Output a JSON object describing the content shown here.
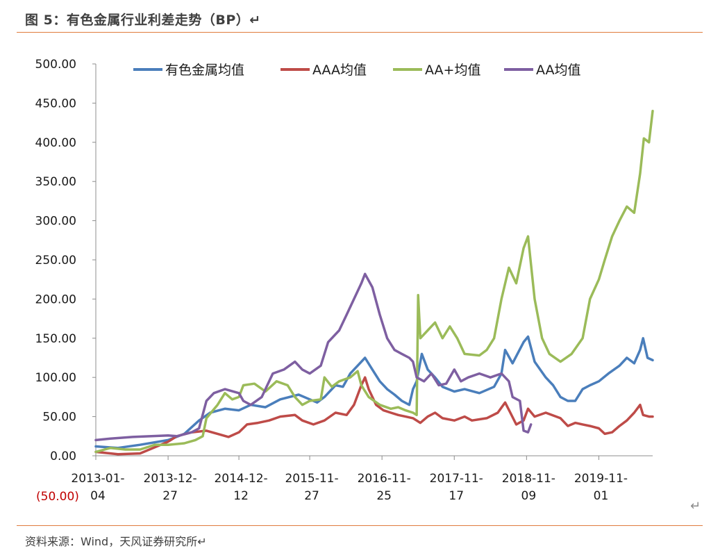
{
  "page": {
    "title": "图 5：有色金属行业利差走势（BP）↵",
    "source": "资料来源：Wind，天风证券研究所↵",
    "return_mark": "↵"
  },
  "chart_data": {
    "type": "line",
    "title": "",
    "xlabel": "",
    "ylabel": "",
    "ylim": [
      0,
      500
    ],
    "y_ticks": [
      "500.00",
      "450.00",
      "400.00",
      "350.00",
      "300.00",
      "250.00",
      "200.00",
      "150.00",
      "100.00",
      "50.00",
      "0.00"
    ],
    "y_below_label": "(50.00)",
    "y_below_label_color": "#c00000",
    "x_ticks": [
      {
        "line1": "2013-01-",
        "line2": "04",
        "t": 0.0
      },
      {
        "line1": "2013-12-",
        "line2": "27",
        "t": 0.98
      },
      {
        "line1": "2014-12-",
        "line2": "12",
        "t": 1.94
      },
      {
        "line1": "2015-11-",
        "line2": "27",
        "t": 2.9
      },
      {
        "line1": "2016-11-",
        "line2": "25",
        "t": 3.88
      },
      {
        "line1": "2017-11-",
        "line2": "17",
        "t": 4.86
      },
      {
        "line1": "2018-11-",
        "line2": "09",
        "t": 5.84
      },
      {
        "line1": "2019-11-",
        "line2": "01",
        "t": 6.82
      }
    ],
    "x_range": [
      0,
      7.55
    ],
    "legend_position": "top",
    "series": [
      {
        "name": "有色金属均值",
        "color": "#4a7ebb",
        "points": [
          [
            0,
            12
          ],
          [
            0.3,
            10
          ],
          [
            0.6,
            14
          ],
          [
            0.98,
            20
          ],
          [
            1.2,
            28
          ],
          [
            1.4,
            45
          ],
          [
            1.55,
            55
          ],
          [
            1.75,
            60
          ],
          [
            1.94,
            58
          ],
          [
            2.1,
            65
          ],
          [
            2.3,
            62
          ],
          [
            2.5,
            72
          ],
          [
            2.75,
            78
          ],
          [
            2.9,
            72
          ],
          [
            3.0,
            68
          ],
          [
            3.1,
            75
          ],
          [
            3.25,
            90
          ],
          [
            3.35,
            88
          ],
          [
            3.45,
            105
          ],
          [
            3.55,
            115
          ],
          [
            3.65,
            125
          ],
          [
            3.75,
            110
          ],
          [
            3.85,
            95
          ],
          [
            3.95,
            85
          ],
          [
            4.05,
            78
          ],
          [
            4.15,
            70
          ],
          [
            4.25,
            65
          ],
          [
            4.3,
            85
          ],
          [
            4.35,
            95
          ],
          [
            4.42,
            130
          ],
          [
            4.5,
            110
          ],
          [
            4.6,
            100
          ],
          [
            4.7,
            88
          ],
          [
            4.86,
            82
          ],
          [
            5.0,
            85
          ],
          [
            5.2,
            80
          ],
          [
            5.4,
            88
          ],
          [
            5.5,
            105
          ],
          [
            5.55,
            135
          ],
          [
            5.65,
            118
          ],
          [
            5.8,
            145
          ],
          [
            5.86,
            152
          ],
          [
            5.95,
            120
          ],
          [
            6.1,
            100
          ],
          [
            6.2,
            90
          ],
          [
            6.3,
            75
          ],
          [
            6.4,
            70
          ],
          [
            6.5,
            70
          ],
          [
            6.6,
            85
          ],
          [
            6.7,
            90
          ],
          [
            6.82,
            95
          ],
          [
            6.95,
            105
          ],
          [
            7.1,
            115
          ],
          [
            7.2,
            125
          ],
          [
            7.3,
            118
          ],
          [
            7.38,
            135
          ],
          [
            7.42,
            150
          ],
          [
            7.48,
            125
          ],
          [
            7.55,
            122
          ]
        ]
      },
      {
        "name": "AAA均值",
        "color": "#be4b48",
        "points": [
          [
            0,
            5
          ],
          [
            0.3,
            2
          ],
          [
            0.6,
            3
          ],
          [
            0.98,
            18
          ],
          [
            1.1,
            25
          ],
          [
            1.3,
            30
          ],
          [
            1.5,
            32
          ],
          [
            1.65,
            28
          ],
          [
            1.8,
            24
          ],
          [
            1.94,
            30
          ],
          [
            2.05,
            40
          ],
          [
            2.2,
            42
          ],
          [
            2.35,
            45
          ],
          [
            2.5,
            50
          ],
          [
            2.7,
            52
          ],
          [
            2.8,
            45
          ],
          [
            2.95,
            40
          ],
          [
            3.1,
            45
          ],
          [
            3.25,
            55
          ],
          [
            3.4,
            52
          ],
          [
            3.5,
            65
          ],
          [
            3.6,
            90
          ],
          [
            3.65,
            100
          ],
          [
            3.7,
            85
          ],
          [
            3.8,
            65
          ],
          [
            3.9,
            58
          ],
          [
            4.0,
            55
          ],
          [
            4.1,
            52
          ],
          [
            4.2,
            50
          ],
          [
            4.3,
            48
          ],
          [
            4.4,
            42
          ],
          [
            4.5,
            50
          ],
          [
            4.6,
            55
          ],
          [
            4.7,
            48
          ],
          [
            4.86,
            45
          ],
          [
            5.0,
            50
          ],
          [
            5.1,
            45
          ],
          [
            5.3,
            48
          ],
          [
            5.45,
            55
          ],
          [
            5.55,
            68
          ],
          [
            5.62,
            55
          ],
          [
            5.7,
            40
          ],
          [
            5.8,
            45
          ],
          [
            5.86,
            60
          ],
          [
            5.95,
            50
          ],
          [
            6.1,
            55
          ],
          [
            6.3,
            48
          ],
          [
            6.4,
            38
          ],
          [
            6.5,
            42
          ],
          [
            6.6,
            40
          ],
          [
            6.7,
            38
          ],
          [
            6.82,
            35
          ],
          [
            6.9,
            28
          ],
          [
            7.0,
            30
          ],
          [
            7.1,
            38
          ],
          [
            7.2,
            45
          ],
          [
            7.3,
            55
          ],
          [
            7.38,
            65
          ],
          [
            7.42,
            52
          ],
          [
            7.5,
            50
          ],
          [
            7.55,
            50
          ]
        ]
      },
      {
        "name": "AA+均值",
        "color": "#9bbb59",
        "points": [
          [
            0,
            5
          ],
          [
            0.2,
            10
          ],
          [
            0.4,
            8
          ],
          [
            0.6,
            8
          ],
          [
            0.8,
            14
          ],
          [
            0.98,
            14
          ],
          [
            1.2,
            16
          ],
          [
            1.35,
            20
          ],
          [
            1.45,
            25
          ],
          [
            1.5,
            48
          ],
          [
            1.65,
            65
          ],
          [
            1.75,
            80
          ],
          [
            1.85,
            72
          ],
          [
            1.94,
            75
          ],
          [
            2.0,
            90
          ],
          [
            2.15,
            92
          ],
          [
            2.3,
            82
          ],
          [
            2.45,
            95
          ],
          [
            2.6,
            90
          ],
          [
            2.7,
            75
          ],
          [
            2.8,
            65
          ],
          [
            2.9,
            70
          ],
          [
            3.05,
            72
          ],
          [
            3.1,
            100
          ],
          [
            3.2,
            88
          ],
          [
            3.3,
            95
          ],
          [
            3.45,
            100
          ],
          [
            3.55,
            108
          ],
          [
            3.6,
            90
          ],
          [
            3.7,
            75
          ],
          [
            3.85,
            65
          ],
          [
            4.0,
            60
          ],
          [
            4.1,
            62
          ],
          [
            4.2,
            58
          ],
          [
            4.3,
            55
          ],
          [
            4.35,
            52
          ],
          [
            4.37,
            205
          ],
          [
            4.4,
            150
          ],
          [
            4.5,
            160
          ],
          [
            4.6,
            170
          ],
          [
            4.7,
            150
          ],
          [
            4.8,
            165
          ],
          [
            4.9,
            150
          ],
          [
            5.0,
            130
          ],
          [
            5.2,
            128
          ],
          [
            5.3,
            135
          ],
          [
            5.4,
            150
          ],
          [
            5.5,
            200
          ],
          [
            5.6,
            240
          ],
          [
            5.7,
            220
          ],
          [
            5.8,
            265
          ],
          [
            5.86,
            280
          ],
          [
            5.95,
            200
          ],
          [
            6.05,
            150
          ],
          [
            6.15,
            130
          ],
          [
            6.3,
            120
          ],
          [
            6.45,
            130
          ],
          [
            6.6,
            150
          ],
          [
            6.7,
            200
          ],
          [
            6.82,
            225
          ],
          [
            6.9,
            250
          ],
          [
            7.0,
            280
          ],
          [
            7.1,
            300
          ],
          [
            7.2,
            318
          ],
          [
            7.3,
            310
          ],
          [
            7.38,
            360
          ],
          [
            7.43,
            405
          ],
          [
            7.5,
            400
          ],
          [
            7.55,
            440
          ]
        ]
      },
      {
        "name": "AA均值",
        "color": "#7e5fa1",
        "points": [
          [
            0,
            20
          ],
          [
            0.2,
            22
          ],
          [
            0.5,
            24
          ],
          [
            0.98,
            26
          ],
          [
            1.1,
            25
          ],
          [
            1.3,
            30
          ],
          [
            1.4,
            35
          ],
          [
            1.5,
            70
          ],
          [
            1.6,
            80
          ],
          [
            1.75,
            85
          ],
          [
            1.94,
            80
          ],
          [
            2.0,
            70
          ],
          [
            2.1,
            65
          ],
          [
            2.25,
            75
          ],
          [
            2.4,
            105
          ],
          [
            2.55,
            110
          ],
          [
            2.7,
            120
          ],
          [
            2.8,
            110
          ],
          [
            2.9,
            105
          ],
          [
            3.05,
            115
          ],
          [
            3.15,
            145
          ],
          [
            3.3,
            160
          ],
          [
            3.4,
            180
          ],
          [
            3.5,
            200
          ],
          [
            3.6,
            220
          ],
          [
            3.65,
            232
          ],
          [
            3.75,
            215
          ],
          [
            3.85,
            180
          ],
          [
            3.95,
            150
          ],
          [
            4.05,
            135
          ],
          [
            4.15,
            130
          ],
          [
            4.25,
            125
          ],
          [
            4.3,
            120
          ],
          [
            4.35,
            100
          ],
          [
            4.45,
            95
          ],
          [
            4.55,
            105
          ],
          [
            4.65,
            90
          ],
          [
            4.75,
            92
          ],
          [
            4.86,
            110
          ],
          [
            4.95,
            95
          ],
          [
            5.05,
            100
          ],
          [
            5.2,
            105
          ],
          [
            5.35,
            100
          ],
          [
            5.5,
            105
          ],
          [
            5.6,
            95
          ],
          [
            5.65,
            75
          ],
          [
            5.75,
            70
          ],
          [
            5.8,
            32
          ],
          [
            5.86,
            30
          ],
          [
            5.9,
            40
          ]
        ]
      }
    ]
  }
}
